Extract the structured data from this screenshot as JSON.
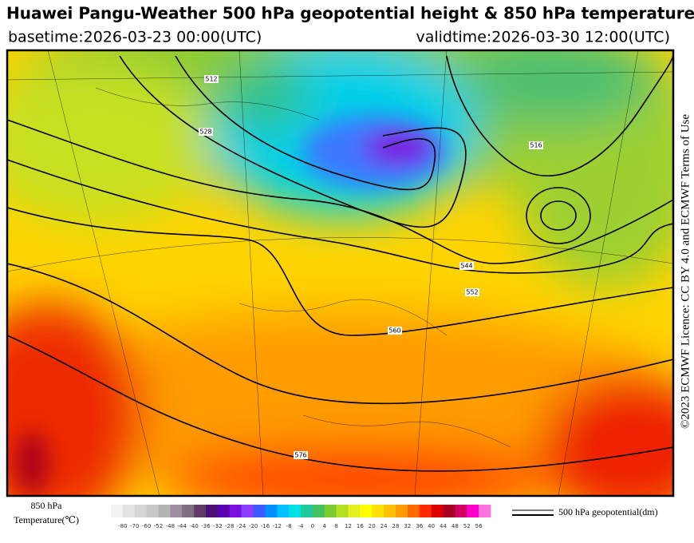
{
  "header": {
    "title": "Huawei Pangu-Weather 500 hPa geopotential height & 850 hPa temperature",
    "basetime": "basetime:2026-03-23 00:00(UTC)",
    "validtime": "validtime:2026-03-30 12:00(UTC)"
  },
  "licence": "©2023 ECMWF Licence: CC BY 4.0 and ECMWF Terms of Use",
  "contour_labels": [
    "512",
    "528",
    "544",
    "552",
    "560",
    "576",
    "516"
  ],
  "colorbar": {
    "title_line1": "850 hPa",
    "title_line2": "Temperature(℃)",
    "ticks": [
      -80,
      -70,
      -60,
      -52,
      -48,
      -44,
      -40,
      -36,
      -32,
      -28,
      -24,
      -20,
      -16,
      -12,
      -8,
      -4,
      0,
      4,
      8,
      12,
      16,
      20,
      24,
      28,
      32,
      36,
      40,
      44,
      48,
      52,
      56
    ],
    "colors": [
      "#f2f2f2",
      "#e4e4e4",
      "#d6d6d6",
      "#c8c8c8",
      "#b4b4b4",
      "#a08fa0",
      "#826f82",
      "#5e3c66",
      "#4a0f7a",
      "#5a00b0",
      "#7a10e0",
      "#8c3cff",
      "#3c5aff",
      "#0090ff",
      "#00c0ff",
      "#00e0e6",
      "#20c8a0",
      "#44c060",
      "#7ccc30",
      "#b4e020",
      "#e6f020",
      "#ffff00",
      "#ffe000",
      "#ffc000",
      "#ff9c00",
      "#ff6a00",
      "#ff2a00",
      "#dc0000",
      "#a8001e",
      "#d20064",
      "#ff00c8",
      "#ff70e0"
    ]
  },
  "line_legend": "500 hPa geopotential(dm)"
}
